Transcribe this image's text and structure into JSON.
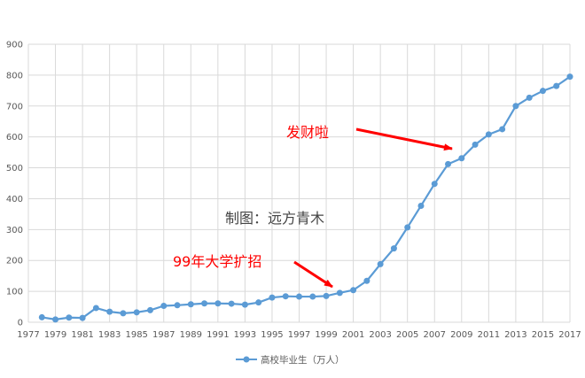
{
  "chart_data": {
    "type": "line",
    "title": "",
    "xlabel": "",
    "ylabel": "",
    "ylim": [
      0,
      900
    ],
    "y_ticks": [
      "0",
      "100",
      "200",
      "300",
      "400",
      "500",
      "600",
      "700",
      "800",
      "900"
    ],
    "x_ticks": [
      "1977",
      "1979",
      "1981",
      "1983",
      "1985",
      "1987",
      "1989",
      "1991",
      "1993",
      "1995",
      "1997",
      "1999",
      "2001",
      "2003",
      "2005",
      "2007",
      "2009",
      "2011",
      "2013",
      "2015",
      "2017"
    ],
    "grid": true,
    "legend_position": "bottom",
    "series": [
      {
        "name": "高校毕业生（万人）",
        "color": "#5b9bd5",
        "x": [
          1978,
          1979,
          1980,
          1981,
          1982,
          1983,
          1984,
          1985,
          1986,
          1987,
          1988,
          1989,
          1990,
          1991,
          1992,
          1993,
          1994,
          1995,
          1996,
          1997,
          1998,
          1999,
          2000,
          2001,
          2002,
          2003,
          2004,
          2005,
          2006,
          2007,
          2008,
          2009,
          2010,
          2011,
          2012,
          2013,
          2014,
          2015,
          2016,
          2017
        ],
        "values": [
          16,
          9,
          15,
          14,
          46,
          34,
          29,
          32,
          39,
          53,
          55,
          58,
          61,
          61,
          60,
          57,
          64,
          80,
          84,
          83,
          83,
          85,
          95,
          104,
          134,
          188,
          239,
          307,
          377,
          448,
          512,
          531,
          575,
          608,
          625,
          700,
          727,
          749,
          765,
          795
        ]
      }
    ],
    "annotations": {
      "rich": "发财啦",
      "expansion": "99年大学扩招",
      "credit": "制图：远方青木"
    }
  }
}
